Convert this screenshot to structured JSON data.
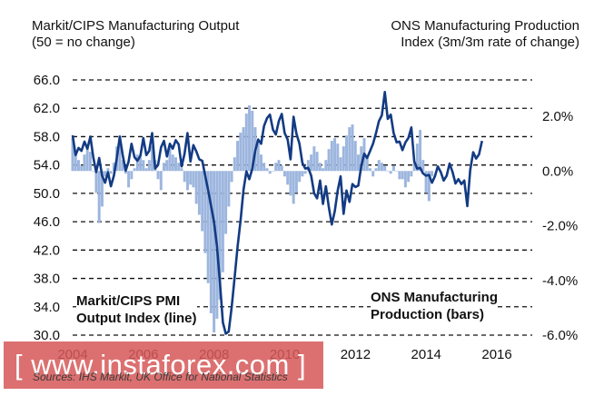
{
  "titles": {
    "left_line1": "Markit/CIPS Manufacturing Output",
    "left_line2": "(50 = no change)",
    "right_line1": "ONS Manufacturing Production",
    "right_line2": "Index (3m/3m rate of change)"
  },
  "labels": {
    "pmi_line1": "Markit/CIPS PMI",
    "pmi_line2": "Output Index (line)",
    "ons_line1": "ONS Manufacturing",
    "ons_line2": "Production (bars)"
  },
  "source": "Sources: IHS Markit, UK Office for National Statistics",
  "watermark": "[ www.instaforex.com ]",
  "colors": {
    "line": "#133b83",
    "bars": "#9db6de",
    "grid": "#111111"
  },
  "chart_data": {
    "type": "bar+line",
    "x_range": [
      2004.0,
      2017.0
    ],
    "x_ticks": [
      "2004",
      "2006",
      "2008",
      "2010",
      "2012",
      "2014",
      "2016"
    ],
    "x_tick_values": [
      2004,
      2006,
      2008,
      2010,
      2012,
      2014,
      2016
    ],
    "y_left": {
      "ticks": [
        "66.0",
        "62.0",
        "58.0",
        "54.0",
        "50.0",
        "46.0",
        "42.0",
        "38.0",
        "34.0",
        "30.0"
      ],
      "range": [
        30,
        66
      ]
    },
    "y_right": {
      "ticks": [
        "2.0%",
        "0.0%",
        "-2.0%",
        "-4.0%",
        "-6.0%"
      ],
      "range": [
        -6,
        2
      ]
    },
    "grid": "horizontal dashed",
    "series": [
      {
        "name": "Markit/CIPS PMI Output Index",
        "axis": "left",
        "kind": "line",
        "t0": 2004.0,
        "step": 0.0833,
        "values": [
          58.2,
          55.4,
          56.4,
          56.0,
          57.3,
          56.3,
          58.0,
          55.1,
          53.0,
          55.0,
          52.5,
          51.5,
          53.0,
          51.0,
          52.5,
          55.0,
          58.0,
          55.4,
          53.2,
          54.5,
          57.0,
          55.1,
          54.6,
          55.3,
          57.8,
          55.4,
          56.0,
          58.5,
          53.5,
          54.0,
          56.5,
          57.4,
          55.2,
          57.0,
          56.3,
          57.5,
          56.9,
          53.8,
          55.6,
          58.5,
          54.5,
          56.8,
          55.9,
          54.8,
          54.6,
          52.5,
          50.5,
          48.2,
          46.0,
          42.5,
          37.5,
          31.8,
          30.2,
          30.5,
          34.0,
          38.1,
          42.5,
          46.1,
          50.5,
          53.1,
          52.0,
          53.5,
          56.0,
          57.6,
          57.0,
          59.5,
          60.6,
          61.1,
          59.0,
          58.3,
          60.2,
          61.2,
          58.5,
          57.6,
          54.8,
          60.8,
          58.4,
          57.0,
          54.3,
          53.5,
          53.6,
          52.5,
          50.0,
          49.3,
          51.8,
          48.5,
          51.0,
          48.0,
          45.6,
          47.5,
          50.4,
          52.4,
          47.1,
          50.4,
          48.8,
          51.3,
          50.9,
          51.1,
          53.8,
          55.6,
          55.0,
          56.0,
          57.0,
          58.5,
          60.2,
          61.0,
          64.3,
          60.5,
          61.1,
          58.5,
          57.2,
          57.3,
          56.1,
          57.2,
          57.8,
          59.3,
          54.5,
          53.5,
          53.6,
          52.8,
          52.5,
          52.6,
          51.5,
          52.4,
          53.8,
          53.0,
          51.8,
          52.5,
          54.2,
          53.0,
          51.4,
          52.0,
          51.3,
          51.8,
          48.2,
          53.3,
          55.8,
          54.9,
          55.5,
          57.4
        ]
      },
      {
        "name": "ONS Manufacturing Production",
        "axis": "right",
        "kind": "bar",
        "t0": 2004.0,
        "step": 0.0833,
        "values": [
          1.2,
          0.6,
          0.4,
          0.2,
          0.6,
          0.9,
          0.7,
          0.0,
          -0.8,
          -1.9,
          -1.3,
          -0.2,
          0.1,
          -0.1,
          0.3,
          0.9,
          1.3,
          0.4,
          -0.1,
          -0.6,
          -0.3,
          0.1,
          0.6,
          0.5,
          0.4,
          0.1,
          0.4,
          0.9,
          0.4,
          -0.3,
          -0.7,
          0.3,
          0.4,
          0.9,
          0.6,
          0.5,
          0.3,
          0.1,
          -0.4,
          -0.7,
          -0.5,
          -0.6,
          -1.2,
          -1.6,
          -2.2,
          -3.0,
          -4.1,
          -5.2,
          -5.9,
          -5.4,
          -4.7,
          -3.7,
          -2.3,
          -1.3,
          -0.4,
          0.5,
          1.1,
          1.4,
          1.6,
          2.1,
          2.4,
          2.2,
          1.6,
          1.0,
          0.6,
          0.3,
          0.1,
          -0.1,
          0.0,
          0.3,
          0.4,
          0.2,
          -0.2,
          -0.5,
          -0.9,
          -1.2,
          -0.8,
          -0.4,
          -0.2,
          -0.1,
          0.4,
          0.6,
          0.9,
          0.7,
          0.3,
          0.1,
          0.4,
          0.8,
          1.1,
          1.2,
          1.0,
          0.5,
          0.9,
          1.3,
          1.6,
          1.7,
          1.1,
          0.6,
          0.9,
          1.2,
          0.5,
          0.1,
          -0.2,
          0.1,
          0.4,
          0.3,
          0.2,
          0.0,
          -0.1,
          0.2,
          0.0,
          -0.3,
          -0.3,
          -0.6,
          -0.4,
          -0.2,
          0.3,
          1.0,
          1.5,
          0.4,
          -0.8,
          -1.1,
          -0.2
        ]
      }
    ]
  }
}
